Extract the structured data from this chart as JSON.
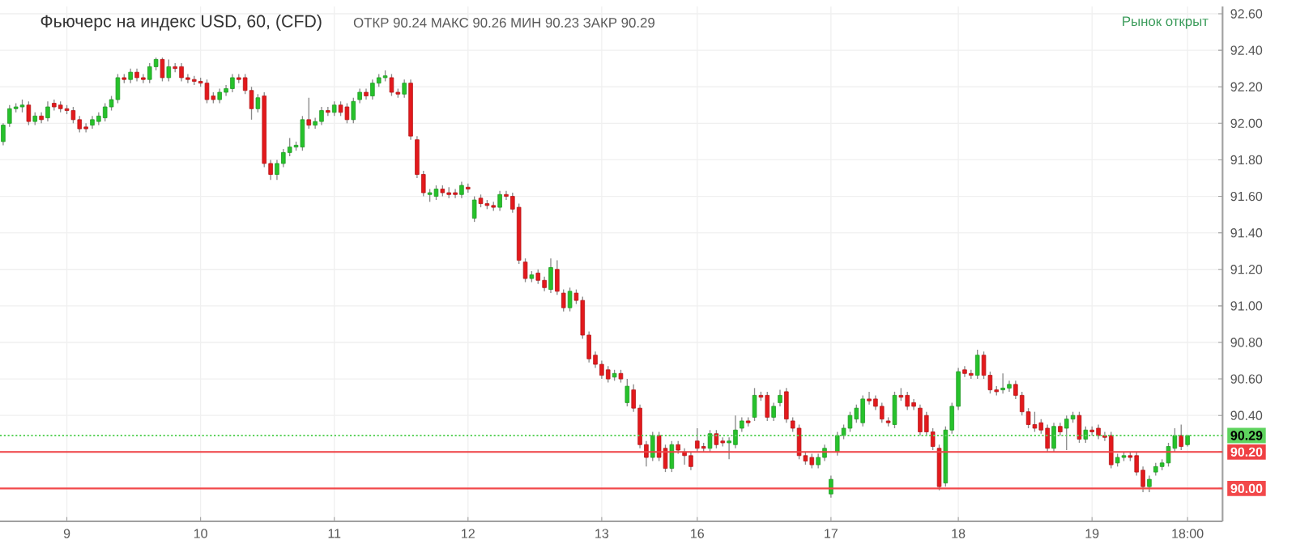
{
  "chart_data": {
    "type": "candlestick",
    "title": "Фьючерс на индекс USD, 60, (CFD)",
    "annotations": [
      "ОТКР 90.24 МАКС 90.26 МИН 90.23 ЗАКР 90.29",
      "Рынок открыт"
    ],
    "categories": [
      null,
      null,
      null,
      null,
      null,
      null,
      null,
      null,
      null,
      null,
      "9",
      null,
      null,
      null,
      null,
      null,
      null,
      null,
      null,
      null,
      null,
      null,
      null,
      null,
      null,
      null,
      null,
      null,
      null,
      null,
      null,
      "10",
      null,
      null,
      null,
      null,
      null,
      null,
      null,
      null,
      null,
      null,
      null,
      null,
      null,
      null,
      null,
      null,
      null,
      null,
      null,
      null,
      "11",
      null,
      null,
      null,
      null,
      null,
      null,
      null,
      null,
      null,
      null,
      null,
      null,
      null,
      null,
      null,
      null,
      null,
      null,
      null,
      null,
      "12",
      null,
      null,
      null,
      null,
      null,
      null,
      null,
      null,
      null,
      null,
      null,
      null,
      null,
      null,
      null,
      null,
      null,
      null,
      null,
      null,
      "13",
      null,
      null,
      null,
      null,
      null,
      null,
      null,
      null,
      null,
      null,
      null,
      null,
      null,
      null,
      "16",
      null,
      null,
      null,
      null,
      null,
      null,
      null,
      null,
      null,
      null,
      null,
      null,
      null,
      null,
      null,
      null,
      null,
      null,
      null,
      null,
      "17",
      null,
      null,
      null,
      null,
      null,
      null,
      null,
      null,
      null,
      null,
      null,
      null,
      null,
      null,
      null,
      null,
      null,
      null,
      null,
      "18",
      null,
      null,
      null,
      null,
      null,
      null,
      null,
      null,
      null,
      null,
      null,
      null,
      null,
      null,
      null,
      null,
      null,
      null,
      null,
      null,
      "19",
      null,
      null,
      null,
      null,
      null,
      null,
      null,
      null,
      null,
      null,
      null,
      null,
      null,
      null,
      "18:00"
    ],
    "ohlc": [
      [
        91.9,
        92.0,
        91.88,
        91.99
      ],
      [
        92.0,
        92.1,
        91.98,
        92.08
      ],
      [
        92.08,
        92.11,
        92.06,
        92.09
      ],
      [
        92.09,
        92.13,
        92.06,
        92.1
      ],
      [
        92.1,
        92.12,
        91.99,
        92.01
      ],
      [
        92.01,
        92.06,
        91.99,
        92.04
      ],
      [
        92.04,
        92.06,
        92.0,
        92.02
      ],
      [
        92.03,
        92.12,
        92.01,
        92.09
      ],
      [
        92.11,
        92.13,
        92.07,
        92.09
      ],
      [
        92.1,
        92.12,
        92.06,
        92.08
      ],
      [
        92.08,
        92.1,
        92.05,
        92.07
      ],
      [
        92.07,
        92.09,
        92.0,
        92.02
      ],
      [
        92.02,
        92.04,
        91.95,
        91.97
      ],
      [
        91.98,
        92.0,
        91.95,
        91.97
      ],
      [
        91.99,
        92.04,
        91.97,
        92.02
      ],
      [
        92.01,
        92.06,
        91.99,
        92.04
      ],
      [
        92.03,
        92.11,
        92.01,
        92.09
      ],
      [
        92.09,
        92.15,
        92.07,
        92.13
      ],
      [
        92.13,
        92.27,
        92.11,
        92.25
      ],
      [
        92.25,
        92.27,
        92.22,
        92.24
      ],
      [
        92.24,
        92.3,
        92.22,
        92.28
      ],
      [
        92.28,
        92.3,
        92.23,
        92.25
      ],
      [
        92.25,
        92.27,
        92.22,
        92.24
      ],
      [
        92.24,
        92.33,
        92.22,
        92.31
      ],
      [
        92.31,
        92.36,
        92.29,
        92.35
      ],
      [
        92.35,
        92.36,
        92.23,
        92.25
      ],
      [
        92.25,
        92.35,
        92.23,
        92.31
      ],
      [
        92.31,
        92.33,
        92.28,
        92.3
      ],
      [
        92.31,
        92.33,
        92.23,
        92.25
      ],
      [
        92.25,
        92.27,
        92.22,
        92.24
      ],
      [
        92.24,
        92.26,
        92.21,
        92.23
      ],
      [
        92.23,
        92.25,
        92.2,
        92.22
      ],
      [
        92.22,
        92.24,
        92.11,
        92.13
      ],
      [
        92.15,
        92.17,
        92.11,
        92.13
      ],
      [
        92.13,
        92.19,
        92.11,
        92.17
      ],
      [
        92.17,
        92.21,
        92.15,
        92.19
      ],
      [
        92.19,
        92.27,
        92.17,
        92.25
      ],
      [
        92.25,
        92.27,
        92.22,
        92.24
      ],
      [
        92.25,
        92.27,
        92.16,
        92.18
      ],
      [
        92.18,
        92.2,
        92.02,
        92.08
      ],
      [
        92.08,
        92.16,
        92.06,
        92.14
      ],
      [
        92.15,
        92.17,
        91.76,
        91.78
      ],
      [
        91.78,
        91.8,
        91.69,
        91.72
      ],
      [
        91.72,
        91.8,
        91.69,
        91.78
      ],
      [
        91.78,
        91.86,
        91.76,
        91.84
      ],
      [
        91.84,
        91.92,
        91.82,
        91.87
      ],
      [
        91.87,
        91.9,
        91.85,
        91.88
      ],
      [
        91.87,
        92.04,
        91.85,
        92.02
      ],
      [
        92.02,
        92.14,
        91.97,
        91.99
      ],
      [
        91.99,
        92.03,
        91.97,
        92.01
      ],
      [
        92.01,
        92.09,
        91.99,
        92.07
      ],
      [
        92.07,
        92.09,
        92.04,
        92.06
      ],
      [
        92.06,
        92.12,
        92.04,
        92.1
      ],
      [
        92.1,
        92.12,
        92.04,
        92.06
      ],
      [
        92.09,
        92.11,
        92.0,
        92.02
      ],
      [
        92.02,
        92.14,
        92.0,
        92.12
      ],
      [
        92.13,
        92.19,
        92.11,
        92.17
      ],
      [
        92.17,
        92.19,
        92.13,
        92.15
      ],
      [
        92.15,
        92.24,
        92.13,
        92.22
      ],
      [
        92.22,
        92.27,
        92.2,
        92.25
      ],
      [
        92.25,
        92.29,
        92.23,
        92.26
      ],
      [
        92.25,
        92.27,
        92.15,
        92.17
      ],
      [
        92.17,
        92.19,
        92.14,
        92.16
      ],
      [
        92.16,
        92.24,
        92.14,
        92.22
      ],
      [
        92.22,
        92.24,
        91.91,
        91.93
      ],
      [
        91.91,
        91.93,
        91.7,
        91.72
      ],
      [
        91.72,
        91.74,
        91.6,
        91.62
      ],
      [
        91.61,
        91.64,
        91.57,
        91.62
      ],
      [
        91.6,
        91.66,
        91.58,
        91.64
      ],
      [
        91.64,
        91.66,
        91.6,
        91.62
      ],
      [
        91.62,
        91.65,
        91.59,
        91.61
      ],
      [
        91.62,
        91.64,
        91.59,
        91.61
      ],
      [
        91.61,
        91.68,
        91.59,
        91.66
      ],
      [
        91.65,
        91.67,
        91.62,
        91.64
      ],
      [
        91.48,
        91.6,
        91.46,
        91.58
      ],
      [
        91.59,
        91.61,
        91.54,
        91.56
      ],
      [
        91.56,
        91.58,
        91.53,
        91.55
      ],
      [
        91.55,
        91.57,
        91.52,
        91.54
      ],
      [
        91.54,
        91.63,
        91.52,
        91.61
      ],
      [
        91.61,
        91.63,
        91.58,
        91.6
      ],
      [
        91.6,
        91.62,
        91.51,
        91.53
      ],
      [
        91.54,
        91.56,
        91.23,
        91.25
      ],
      [
        91.24,
        91.26,
        91.13,
        91.15
      ],
      [
        91.15,
        91.19,
        91.13,
        91.17
      ],
      [
        91.18,
        91.2,
        91.12,
        91.14
      ],
      [
        91.14,
        91.16,
        91.08,
        91.1
      ],
      [
        91.09,
        91.26,
        91.07,
        91.21
      ],
      [
        91.2,
        91.25,
        91.06,
        91.08
      ],
      [
        91.07,
        91.09,
        90.97,
        90.99
      ],
      [
        90.99,
        91.1,
        90.97,
        91.08
      ],
      [
        91.07,
        91.09,
        91.01,
        91.03
      ],
      [
        91.03,
        91.05,
        90.82,
        90.84
      ],
      [
        90.84,
        90.86,
        90.69,
        90.71
      ],
      [
        90.73,
        90.75,
        90.66,
        90.68
      ],
      [
        90.68,
        90.7,
        90.6,
        90.62
      ],
      [
        90.65,
        90.67,
        90.58,
        90.6
      ],
      [
        90.61,
        90.65,
        90.59,
        90.63
      ],
      [
        90.63,
        90.65,
        90.58,
        90.6
      ],
      [
        90.47,
        90.6,
        90.45,
        90.56
      ],
      [
        90.54,
        90.57,
        90.42,
        90.44
      ],
      [
        90.44,
        90.46,
        90.22,
        90.24
      ],
      [
        90.24,
        90.26,
        90.12,
        90.17
      ],
      [
        90.17,
        90.31,
        90.15,
        90.29
      ],
      [
        90.29,
        90.31,
        90.15,
        90.17
      ],
      [
        90.22,
        90.24,
        90.09,
        90.11
      ],
      [
        90.11,
        90.26,
        90.09,
        90.24
      ],
      [
        90.24,
        90.26,
        90.19,
        90.21
      ],
      [
        90.2,
        90.22,
        90.13,
        90.18
      ],
      [
        90.18,
        90.2,
        90.1,
        90.12
      ],
      [
        90.26,
        90.33,
        90.2,
        90.22
      ],
      [
        90.23,
        90.25,
        90.2,
        90.22
      ],
      [
        90.22,
        90.32,
        90.2,
        90.3
      ],
      [
        90.3,
        90.32,
        90.22,
        90.24
      ],
      [
        90.26,
        90.28,
        90.23,
        90.25
      ],
      [
        90.25,
        90.28,
        90.16,
        90.26
      ],
      [
        90.24,
        90.4,
        90.22,
        90.32
      ],
      [
        90.33,
        90.39,
        90.31,
        90.37
      ],
      [
        90.37,
        90.39,
        90.34,
        90.36
      ],
      [
        90.39,
        90.55,
        90.37,
        90.51
      ],
      [
        90.51,
        90.53,
        90.48,
        90.5
      ],
      [
        90.51,
        90.53,
        90.37,
        90.39
      ],
      [
        90.39,
        90.47,
        90.37,
        90.45
      ],
      [
        90.47,
        90.54,
        90.45,
        90.51
      ],
      [
        90.53,
        90.55,
        90.36,
        90.38
      ],
      [
        90.37,
        90.39,
        90.31,
        90.33
      ],
      [
        90.33,
        90.35,
        90.16,
        90.18
      ],
      [
        90.18,
        90.2,
        90.13,
        90.15
      ],
      [
        90.17,
        90.19,
        90.11,
        90.13
      ],
      [
        90.13,
        90.19,
        90.11,
        90.17
      ],
      [
        90.17,
        90.24,
        90.15,
        90.22
      ],
      [
        89.97,
        90.07,
        89.95,
        90.05
      ],
      [
        90.2,
        90.31,
        90.18,
        90.29
      ],
      [
        90.29,
        90.35,
        90.27,
        90.33
      ],
      [
        90.33,
        90.42,
        90.31,
        90.4
      ],
      [
        90.38,
        90.46,
        90.36,
        90.44
      ],
      [
        90.36,
        90.51,
        90.34,
        90.49
      ],
      [
        90.49,
        90.53,
        90.46,
        90.48
      ],
      [
        90.49,
        90.51,
        90.43,
        90.45
      ],
      [
        90.45,
        90.47,
        90.36,
        90.38
      ],
      [
        90.37,
        90.39,
        90.34,
        90.36
      ],
      [
        90.35,
        90.53,
        90.33,
        90.51
      ],
      [
        90.51,
        90.55,
        90.48,
        90.5
      ],
      [
        90.51,
        90.53,
        90.43,
        90.45
      ],
      [
        90.47,
        90.49,
        90.43,
        90.45
      ],
      [
        90.44,
        90.46,
        90.29,
        90.31
      ],
      [
        90.4,
        90.42,
        90.29,
        90.31
      ],
      [
        90.31,
        90.33,
        90.21,
        90.23
      ],
      [
        90.22,
        90.24,
        89.99,
        90.01
      ],
      [
        90.03,
        90.34,
        90.01,
        90.32
      ],
      [
        90.32,
        90.47,
        90.3,
        90.45
      ],
      [
        90.45,
        90.66,
        90.43,
        90.64
      ],
      [
        90.65,
        90.67,
        90.61,
        90.63
      ],
      [
        90.63,
        90.65,
        90.6,
        90.62
      ],
      [
        90.62,
        90.76,
        90.6,
        90.73
      ],
      [
        90.73,
        90.75,
        90.6,
        90.62
      ],
      [
        90.62,
        90.64,
        90.52,
        90.54
      ],
      [
        90.54,
        90.56,
        90.51,
        90.53
      ],
      [
        90.54,
        90.63,
        90.52,
        90.55
      ],
      [
        90.55,
        90.59,
        90.53,
        90.57
      ],
      [
        90.57,
        90.59,
        90.49,
        90.51
      ],
      [
        90.51,
        90.53,
        90.4,
        90.42
      ],
      [
        90.42,
        90.44,
        90.33,
        90.35
      ],
      [
        90.35,
        90.42,
        90.31,
        90.33
      ],
      [
        90.36,
        90.38,
        90.3,
        90.32
      ],
      [
        90.33,
        90.35,
        90.2,
        90.22
      ],
      [
        90.22,
        90.36,
        90.2,
        90.34
      ],
      [
        90.34,
        90.36,
        90.29,
        90.31
      ],
      [
        90.33,
        90.4,
        90.21,
        90.38
      ],
      [
        90.38,
        90.42,
        90.36,
        90.4
      ],
      [
        90.4,
        90.42,
        90.25,
        90.27
      ],
      [
        90.27,
        90.34,
        90.25,
        90.32
      ],
      [
        90.32,
        90.34,
        90.29,
        90.31
      ],
      [
        90.33,
        90.35,
        90.27,
        90.29
      ],
      [
        90.29,
        90.31,
        90.26,
        90.28
      ],
      [
        90.29,
        90.31,
        90.11,
        90.13
      ],
      [
        90.14,
        90.19,
        90.12,
        90.17
      ],
      [
        90.17,
        90.2,
        90.15,
        90.18
      ],
      [
        90.18,
        90.2,
        90.15,
        90.17
      ],
      [
        90.18,
        90.2,
        90.07,
        90.09
      ],
      [
        90.1,
        90.12,
        89.98,
        90.01
      ],
      [
        90.01,
        90.07,
        89.98,
        90.05
      ],
      [
        90.09,
        90.14,
        90.07,
        90.12
      ],
      [
        90.12,
        90.16,
        90.1,
        90.14
      ],
      [
        90.14,
        90.25,
        90.12,
        90.23
      ],
      [
        90.22,
        90.33,
        90.2,
        90.29
      ],
      [
        90.29,
        90.35,
        90.21,
        90.23
      ],
      [
        90.24,
        90.29,
        90.23,
        90.29
      ]
    ],
    "colors": [
      "#26c22b",
      "#26c22b",
      "#26c22b",
      "#26c22b",
      "#e3191c",
      "#26c22b",
      "#e3191c",
      "#26c22b",
      "#e3191c",
      "#e3191c",
      "#e3191c",
      "#e3191c",
      "#e3191c",
      "#e3191c",
      "#26c22b",
      "#26c22b",
      "#26c22b",
      "#26c22b",
      "#26c22b",
      "#e3191c",
      "#26c22b",
      "#e3191c",
      "#e3191c",
      "#26c22b",
      "#26c22b",
      "#e3191c",
      "#26c22b",
      "#e3191c",
      "#e3191c",
      "#e3191c",
      "#e3191c",
      "#e3191c",
      "#e3191c",
      "#e3191c",
      "#26c22b",
      "#26c22b",
      "#26c22b",
      "#e3191c",
      "#e3191c",
      "#e3191c",
      "#26c22b",
      "#e3191c",
      "#e3191c",
      "#26c22b",
      "#26c22b",
      "#26c22b",
      "#26c22b",
      "#26c22b",
      "#e3191c",
      "#26c22b",
      "#26c22b",
      "#e3191c",
      "#26c22b",
      "#e3191c",
      "#e3191c",
      "#26c22b",
      "#26c22b",
      "#e3191c",
      "#26c22b",
      "#26c22b",
      "#26c22b",
      "#e3191c",
      "#e3191c",
      "#26c22b",
      "#e3191c",
      "#e3191c",
      "#e3191c",
      "#26c22b",
      "#26c22b",
      "#e3191c",
      "#e3191c",
      "#e3191c",
      "#26c22b",
      "#e3191c",
      "#26c22b",
      "#e3191c",
      "#e3191c",
      "#e3191c",
      "#26c22b",
      "#e3191c",
      "#e3191c",
      "#e3191c",
      "#e3191c",
      "#26c22b",
      "#e3191c",
      "#e3191c",
      "#26c22b",
      "#e3191c",
      "#e3191c",
      "#26c22b",
      "#e3191c",
      "#e3191c",
      "#e3191c",
      "#e3191c",
      "#e3191c",
      "#e3191c",
      "#26c22b",
      "#e3191c",
      "#26c22b",
      "#e3191c",
      "#e3191c",
      "#e3191c",
      "#26c22b",
      "#e3191c",
      "#e3191c",
      "#26c22b",
      "#e3191c",
      "#e3191c",
      "#e3191c",
      "#e3191c",
      "#e3191c",
      "#26c22b",
      "#e3191c",
      "#e3191c",
      "#26c22b",
      "#26c22b",
      "#26c22b",
      "#e3191c",
      "#26c22b",
      "#e3191c",
      "#e3191c",
      "#26c22b",
      "#26c22b",
      "#e3191c",
      "#e3191c",
      "#e3191c",
      "#e3191c",
      "#e3191c",
      "#26c22b",
      "#26c22b",
      "#26c22b",
      "#26c22b",
      "#26c22b",
      "#26c22b",
      "#26c22b",
      "#26c22b",
      "#e3191c",
      "#e3191c",
      "#e3191c",
      "#e3191c",
      "#26c22b",
      "#e3191c",
      "#e3191c",
      "#e3191c",
      "#e3191c",
      "#e3191c",
      "#e3191c",
      "#e3191c",
      "#26c22b",
      "#26c22b",
      "#26c22b",
      "#e3191c",
      "#e3191c",
      "#26c22b",
      "#e3191c",
      "#e3191c",
      "#e3191c",
      "#26c22b",
      "#26c22b",
      "#e3191c",
      "#e3191c",
      "#e3191c",
      "#e3191c",
      "#e3191c",
      "#e3191c",
      "#26c22b",
      "#e3191c",
      "#26c22b",
      "#26c22b",
      "#e3191c",
      "#26c22b",
      "#e3191c",
      "#e3191c",
      "#e3191c",
      "#e3191c",
      "#26c22b",
      "#26c22b",
      "#e3191c",
      "#e3191c",
      "#e3191c",
      "#26c22b",
      "#26c22b",
      "#26c22b",
      "#26c22b",
      "#26c22b",
      "#e3191c",
      "#26c22b"
    ],
    "ylim": [
      89.82,
      92.64
    ],
    "yticks": [
      {
        "value": 90.0,
        "label": null
      },
      {
        "value": 90.2,
        "label": null
      },
      {
        "value": 90.4,
        "label": "90.40"
      },
      {
        "value": 90.6,
        "label": "90.60"
      },
      {
        "value": 90.8,
        "label": "90.80"
      },
      {
        "value": 91.0,
        "label": "91.00"
      },
      {
        "value": 91.2,
        "label": "91.20"
      },
      {
        "value": 91.4,
        "label": "91.40"
      },
      {
        "value": 91.6,
        "label": "91.60"
      },
      {
        "value": 91.8,
        "label": "91.80"
      },
      {
        "value": 92.0,
        "label": "92.00"
      },
      {
        "value": 92.2,
        "label": "92.20"
      },
      {
        "value": 92.4,
        "label": "92.40"
      },
      {
        "value": 92.6,
        "label": "92.60"
      }
    ],
    "grid": true,
    "ref_lines": [
      {
        "axis": "y",
        "value": 90.29,
        "label": "90.29",
        "color": "#5ed35e",
        "line_style": "dotted"
      },
      {
        "axis": "y",
        "value": 90.2,
        "label": "90.20",
        "color": "#ef4043",
        "line_style": "solid"
      },
      {
        "axis": "y",
        "value": 90.0,
        "label": "90.00",
        "color": "#f2484a",
        "line_style": "solid"
      }
    ]
  }
}
